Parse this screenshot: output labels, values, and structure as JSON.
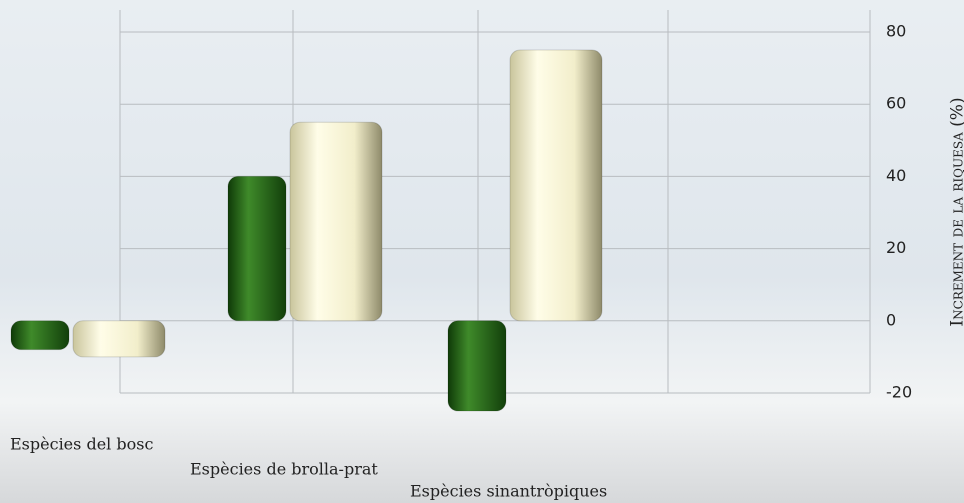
{
  "chart_data": {
    "type": "bar3d",
    "y_label": "Increment de la riquesa (%)",
    "categories": [
      "Espècies del bosc",
      "Espècies de brolla-prat",
      "Espècies sinantròpiques"
    ],
    "series": [
      {
        "color": "#2f6b1e",
        "values": [
          -8,
          40,
          -25
        ]
      },
      {
        "color": "#f4f0cf",
        "values": [
          -10,
          55,
          75
        ]
      }
    ],
    "ylim": [
      -20,
      80
    ],
    "yticks": [
      -20,
      0,
      20,
      40,
      60,
      80
    ],
    "grid": true
  }
}
